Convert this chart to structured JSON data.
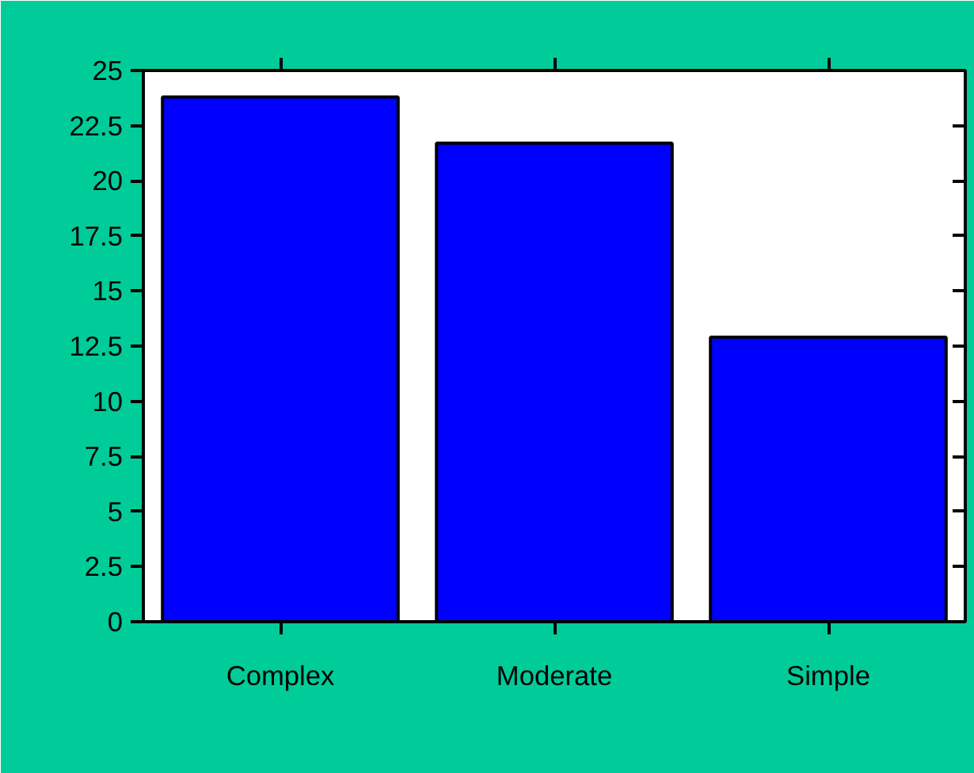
{
  "chart_data": {
    "type": "bar",
    "categories": [
      "Complex",
      "Moderate",
      "Simple"
    ],
    "values": [
      23.8,
      21.7,
      12.9
    ],
    "color": "#0000ff",
    "ylim": [
      0,
      25
    ],
    "yticks": [
      0,
      2.5,
      5,
      7.5,
      10,
      12.5,
      15,
      17.5,
      20,
      22.5,
      25
    ],
    "grid": false
  }
}
